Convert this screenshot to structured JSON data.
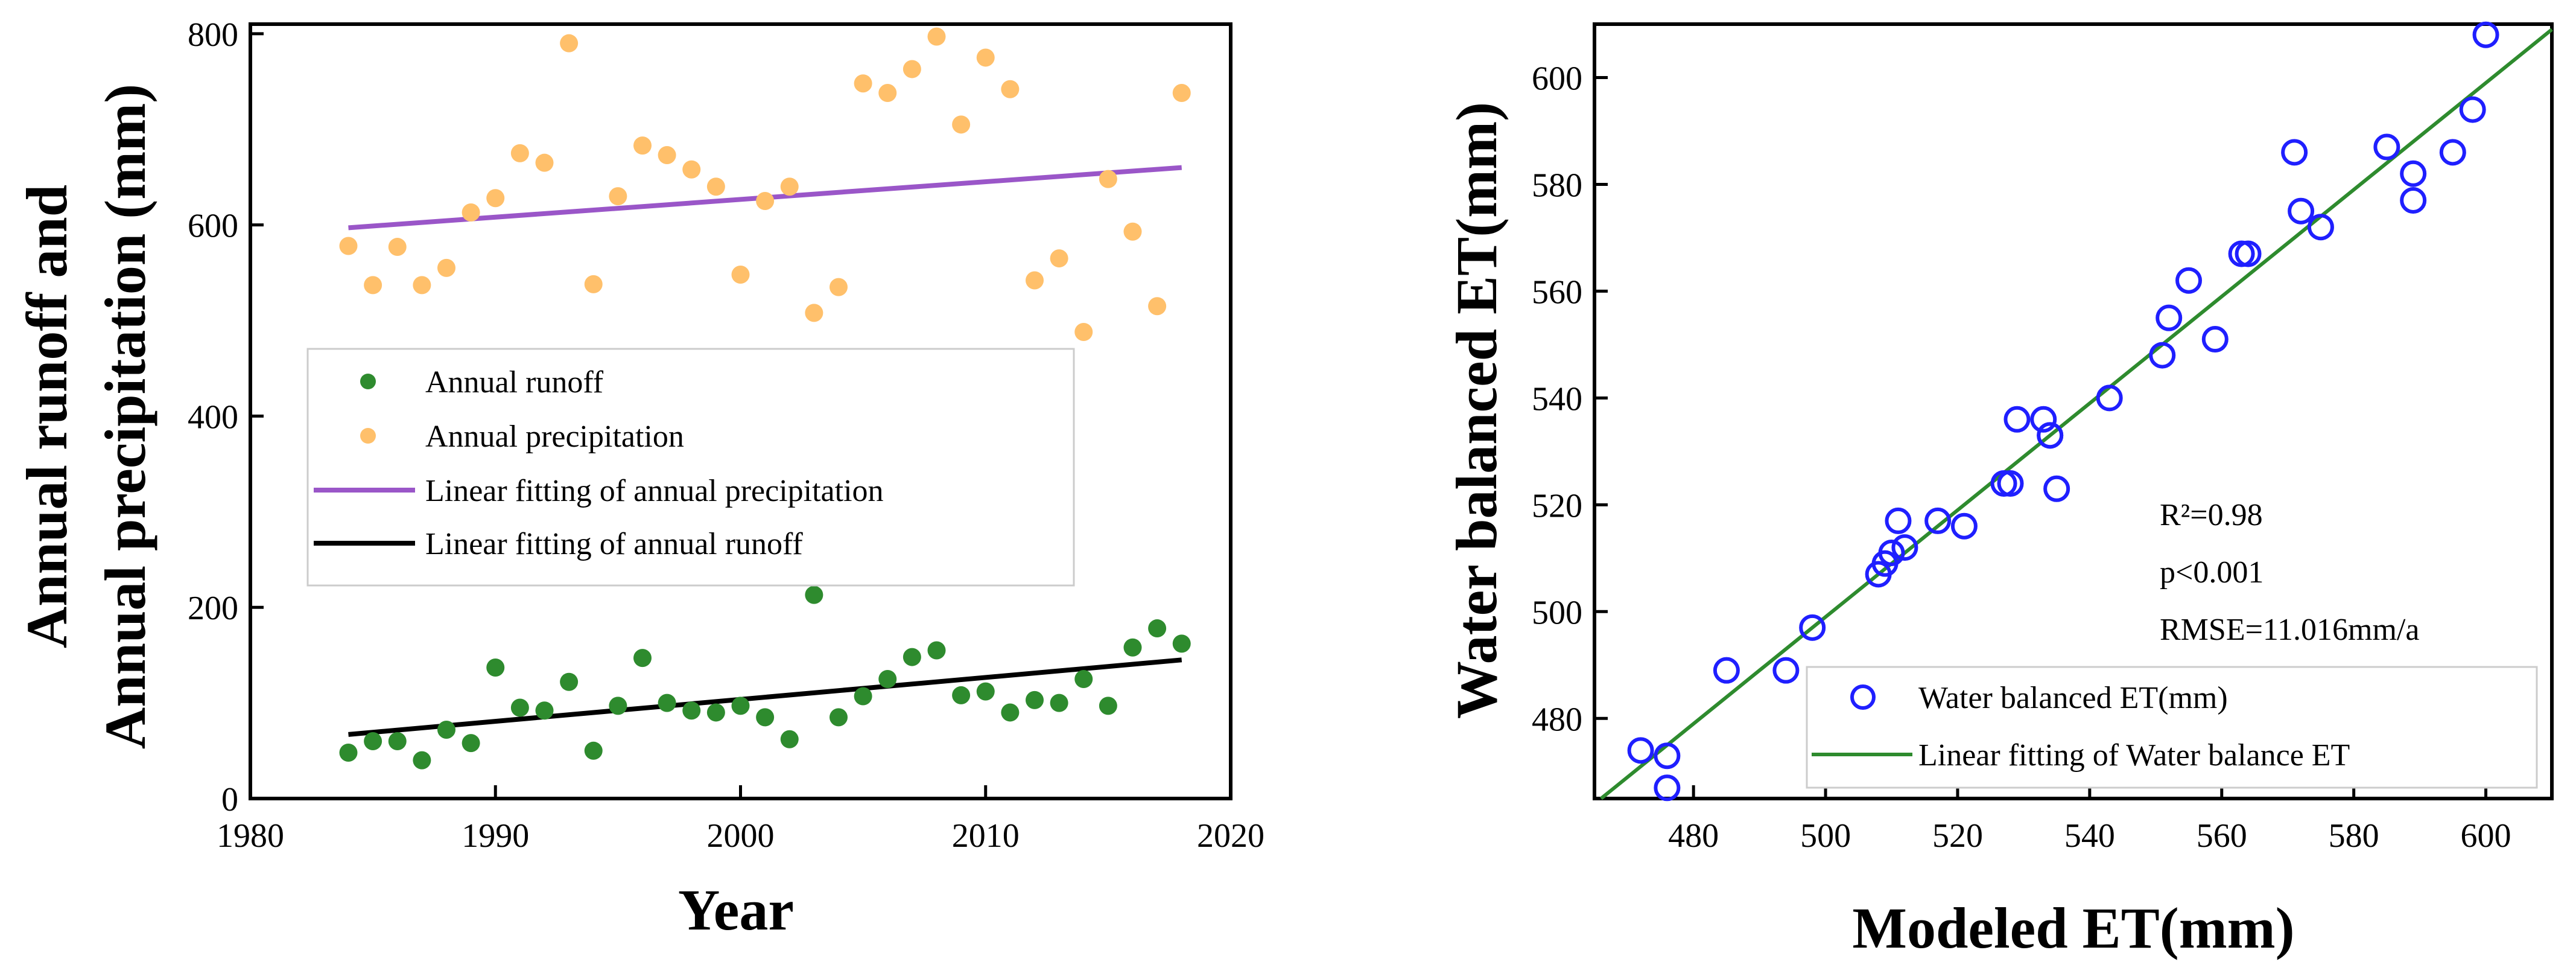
{
  "chart_data": [
    {
      "type": "scatter",
      "xlabel": "Year",
      "ylabel_line1": "Annual runoff and",
      "ylabel_line2": "Annual precipitation (mm)",
      "xlim": [
        1980,
        2020
      ],
      "ylim": [
        0,
        810
      ],
      "xticks": [
        1980,
        1990,
        2000,
        2010,
        2020
      ],
      "yticks": [
        0,
        200,
        400,
        600,
        800
      ],
      "grid": false,
      "legend_position": "center-left",
      "colors": {
        "runoff": "#2e8b2e",
        "precipitation": "#ffc06b",
        "fit_precipitation": "#9a56c8",
        "fit_runoff": "#000000"
      },
      "legend": [
        "Annual runoff",
        "Annual precipitation",
        "Linear fitting of annual precipitation",
        "Linear fitting of annual runoff"
      ],
      "series": [
        {
          "name": "Annual runoff",
          "kind": "scatter",
          "x": [
            1984,
            1985,
            1986,
            1987,
            1988,
            1989,
            1990,
            1991,
            1992,
            1993,
            1994,
            1995,
            1996,
            1997,
            1998,
            1999,
            2000,
            2001,
            2002,
            2003,
            2004,
            2005,
            2006,
            2007,
            2008,
            2009,
            2010,
            2011,
            2012,
            2013,
            2014,
            2015,
            2016,
            2017,
            2018
          ],
          "y": [
            48,
            60,
            60,
            40,
            72,
            58,
            137,
            95,
            92,
            122,
            50,
            97,
            147,
            100,
            92,
            90,
            97,
            85,
            62,
            213,
            85,
            107,
            125,
            148,
            155,
            108,
            112,
            90,
            103,
            100,
            125,
            97,
            158,
            178,
            162
          ]
        },
        {
          "name": "Annual precipitation",
          "kind": "scatter",
          "x": [
            1984,
            1985,
            1986,
            1987,
            1988,
            1989,
            1990,
            1991,
            1992,
            1993,
            1994,
            1995,
            1996,
            1997,
            1998,
            1999,
            2000,
            2001,
            2002,
            2003,
            2004,
            2005,
            2006,
            2007,
            2008,
            2009,
            2010,
            2011,
            2012,
            2013,
            2014,
            2015,
            2016,
            2017,
            2018
          ],
          "y": [
            578,
            537,
            577,
            537,
            555,
            613,
            628,
            675,
            665,
            790,
            538,
            630,
            683,
            673,
            658,
            640,
            548,
            625,
            640,
            508,
            535,
            748,
            738,
            763,
            797,
            705,
            775,
            742,
            542,
            565,
            488,
            648,
            593,
            515,
            738
          ]
        },
        {
          "name": "Linear fitting of annual precipitation",
          "kind": "line",
          "x": [
            1984,
            2018
          ],
          "y": [
            597,
            660
          ]
        },
        {
          "name": "Linear fitting of annual runoff",
          "kind": "line",
          "x": [
            1984,
            2018
          ],
          "y": [
            67,
            145
          ]
        }
      ]
    },
    {
      "type": "scatter",
      "xlabel": "Modeled ET(mm)",
      "ylabel": "Water balanced ET(mm)",
      "xlim": [
        465,
        610
      ],
      "ylim": [
        465,
        610
      ],
      "xticks": [
        480,
        500,
        520,
        540,
        560,
        580,
        600
      ],
      "yticks": [
        480,
        500,
        520,
        540,
        560,
        580,
        600
      ],
      "grid": false,
      "legend_position": "bottom-right",
      "colors": {
        "points": "#1f1fff",
        "fit": "#2e8b2e"
      },
      "legend": [
        "Water balanced ET(mm)",
        "Linear fitting of Water balance ET"
      ],
      "annotations": [
        "R²=0.98",
        "p<0.001",
        "RMSE=11.016mm/a"
      ],
      "series": [
        {
          "name": "Water balanced ET(mm)",
          "kind": "scatter",
          "x": [
            472,
            476,
            476,
            485,
            494,
            498,
            508,
            509,
            510,
            511,
            512,
            517,
            521,
            527,
            528,
            529,
            533,
            534,
            535,
            534,
            543,
            551,
            552,
            555,
            559,
            563,
            564,
            571,
            572,
            575,
            585,
            589,
            589,
            595,
            598,
            600
          ],
          "y": [
            474,
            473,
            467,
            489,
            489,
            497,
            507,
            509,
            511,
            517,
            512,
            517,
            516,
            524,
            524,
            536,
            536,
            533,
            523,
            533,
            540,
            548,
            555,
            562,
            551,
            567,
            567,
            586,
            575,
            572,
            587,
            582,
            577,
            586,
            594,
            608
          ]
        },
        {
          "name": "Linear fitting of Water balance ET",
          "kind": "line",
          "x": [
            466,
            610
          ],
          "y": [
            465,
            609
          ]
        }
      ]
    }
  ]
}
